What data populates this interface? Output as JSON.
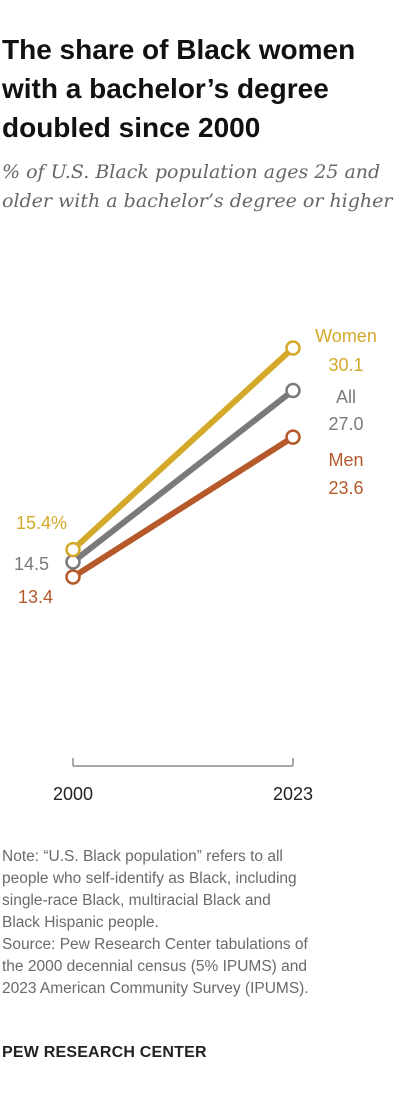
{
  "title": "The share of Black women with a bachelor’s degree doubled since 2000",
  "subtitle": "% of U.S. Black population ages 25 and older with a bachelor’s degree or higher",
  "chart_data": {
    "type": "line",
    "x": [
      "2000",
      "2023"
    ],
    "ylim": [
      0,
      35
    ],
    "grid": false,
    "series": [
      {
        "name": "Women",
        "values": [
          15.4,
          30.1
        ],
        "labels": [
          "15.4%",
          "30.1"
        ],
        "color": "#d4a92a"
      },
      {
        "name": "All",
        "values": [
          14.5,
          27.0
        ],
        "labels": [
          "14.5",
          "27.0"
        ],
        "color": "#7a7a7a"
      },
      {
        "name": "Men",
        "values": [
          13.4,
          23.6
        ],
        "labels": [
          "13.4",
          "23.6"
        ],
        "color": "#b5592a"
      }
    ]
  },
  "note": {
    "line1": "Note: “U.S. Black population” refers to all",
    "line2": "people who self-identify as Black, including",
    "line3": "single-race Black, multiracial Black and",
    "line4": "Black Hispanic people.",
    "line5": "Source: Pew Research Center tabulations of",
    "line6": "the 2000 decennial census (5% IPUMS) and",
    "line7": "2023 American Community Survey (IPUMS)."
  },
  "logo": "PEW RESEARCH CENTER"
}
